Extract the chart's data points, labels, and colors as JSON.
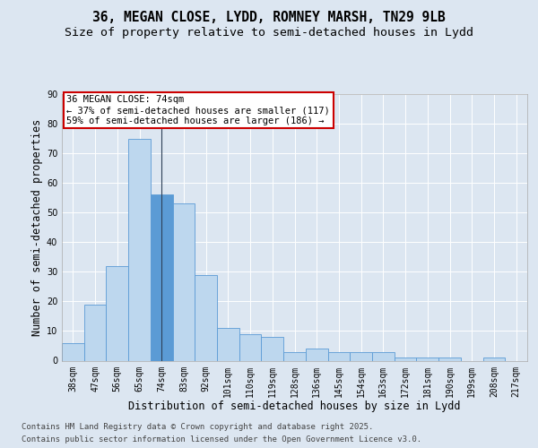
{
  "title_line1": "36, MEGAN CLOSE, LYDD, ROMNEY MARSH, TN29 9LB",
  "title_line2": "Size of property relative to semi-detached houses in Lydd",
  "xlabel": "Distribution of semi-detached houses by size in Lydd",
  "ylabel": "Number of semi-detached properties",
  "categories": [
    "38sqm",
    "47sqm",
    "56sqm",
    "65sqm",
    "74sqm",
    "83sqm",
    "92sqm",
    "101sqm",
    "110sqm",
    "119sqm",
    "128sqm",
    "136sqm",
    "145sqm",
    "154sqm",
    "163sqm",
    "172sqm",
    "181sqm",
    "190sqm",
    "199sqm",
    "208sqm",
    "217sqm"
  ],
  "values": [
    6,
    19,
    32,
    75,
    56,
    53,
    29,
    11,
    9,
    8,
    3,
    4,
    3,
    3,
    3,
    1,
    1,
    1,
    0,
    1,
    0
  ],
  "highlight_index": 4,
  "highlight_color": "#5b9bd5",
  "bar_color": "#bdd7ee",
  "bar_edge_color": "#5b9bd5",
  "highlight_line_color": "#2e4057",
  "annotation_box_text": "36 MEGAN CLOSE: 74sqm\n← 37% of semi-detached houses are smaller (117)\n59% of semi-detached houses are larger (186) →",
  "annotation_box_color": "#ffffff",
  "annotation_box_edge_color": "#cc0000",
  "ylim": [
    0,
    90
  ],
  "yticks": [
    0,
    10,
    20,
    30,
    40,
    50,
    60,
    70,
    80,
    90
  ],
  "background_color": "#dce6f1",
  "plot_bg_color": "#dce6f1",
  "grid_color": "#ffffff",
  "footer_line1": "Contains HM Land Registry data © Crown copyright and database right 2025.",
  "footer_line2": "Contains public sector information licensed under the Open Government Licence v3.0.",
  "title_fontsize": 10.5,
  "subtitle_fontsize": 9.5,
  "axis_label_fontsize": 8.5,
  "tick_fontsize": 7,
  "annotation_fontsize": 7.5,
  "footer_fontsize": 6.5
}
